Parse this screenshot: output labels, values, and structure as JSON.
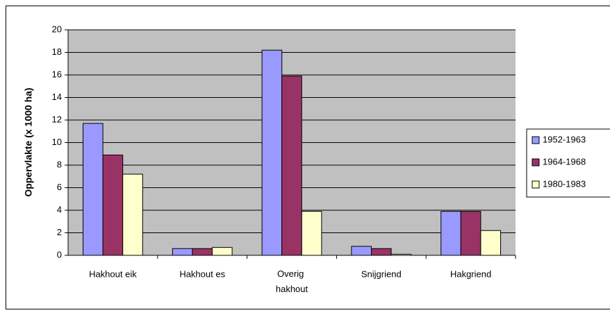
{
  "chart_data": {
    "type": "bar",
    "y_label": "Oppervlakte (x 1000 ha)",
    "categories": [
      "Hakhout eik",
      "Hakhout es",
      "Overig hakhout",
      "Snijgriend",
      "Hakgriend"
    ],
    "series": [
      {
        "name": "1952-1963",
        "color": "#9999ff",
        "values": [
          11.7,
          0.6,
          18.2,
          0.8,
          3.9
        ]
      },
      {
        "name": "1964-1968",
        "color": "#993366",
        "values": [
          8.9,
          0.6,
          15.9,
          0.6,
          3.9
        ]
      },
      {
        "name": "1980-1983",
        "color": "#ffffcc",
        "values": [
          7.2,
          0.7,
          3.9,
          0.1,
          2.2
        ]
      }
    ],
    "ylim": [
      0,
      20
    ],
    "yticks": [
      0,
      2,
      4,
      6,
      8,
      10,
      12,
      14,
      16,
      18,
      20
    ],
    "grid": true,
    "legend": "right"
  }
}
